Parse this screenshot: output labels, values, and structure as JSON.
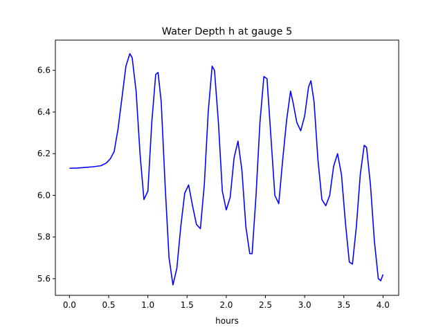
{
  "chart_data": {
    "type": "line",
    "title": "Water Depth h at gauge 5",
    "xlabel": "hours",
    "ylabel": "",
    "xlim": [
      -0.18,
      4.2
    ],
    "ylim": [
      5.52,
      6.745
    ],
    "xticks": [
      0.0,
      0.5,
      1.0,
      1.5,
      2.0,
      2.5,
      3.0,
      3.5,
      4.0
    ],
    "xtick_labels": [
      "0.0",
      "0.5",
      "1.0",
      "1.5",
      "2.0",
      "2.5",
      "3.0",
      "3.5",
      "4.0"
    ],
    "yticks": [
      5.6,
      5.8,
      6.0,
      6.2,
      6.4,
      6.6
    ],
    "ytick_labels": [
      "5.6",
      "5.8",
      "6.0",
      "6.2",
      "6.4",
      "6.6"
    ],
    "grid": false,
    "series": [
      {
        "name": "",
        "color": "#0000ff",
        "points": [
          [
            0.0,
            6.13
          ],
          [
            0.1,
            6.131
          ],
          [
            0.2,
            6.134
          ],
          [
            0.3,
            6.137
          ],
          [
            0.4,
            6.142
          ],
          [
            0.47,
            6.155
          ],
          [
            0.52,
            6.175
          ],
          [
            0.57,
            6.21
          ],
          [
            0.62,
            6.32
          ],
          [
            0.67,
            6.47
          ],
          [
            0.72,
            6.62
          ],
          [
            0.77,
            6.68
          ],
          [
            0.8,
            6.66
          ],
          [
            0.85,
            6.5
          ],
          [
            0.9,
            6.2
          ],
          [
            0.95,
            5.98
          ],
          [
            1.0,
            6.02
          ],
          [
            1.05,
            6.35
          ],
          [
            1.1,
            6.58
          ],
          [
            1.13,
            6.59
          ],
          [
            1.17,
            6.45
          ],
          [
            1.22,
            6.05
          ],
          [
            1.27,
            5.7
          ],
          [
            1.32,
            5.57
          ],
          [
            1.37,
            5.65
          ],
          [
            1.42,
            5.85
          ],
          [
            1.47,
            6.01
          ],
          [
            1.52,
            6.05
          ],
          [
            1.57,
            5.95
          ],
          [
            1.62,
            5.86
          ],
          [
            1.67,
            5.84
          ],
          [
            1.72,
            6.05
          ],
          [
            1.77,
            6.4
          ],
          [
            1.82,
            6.62
          ],
          [
            1.85,
            6.6
          ],
          [
            1.9,
            6.35
          ],
          [
            1.95,
            6.02
          ],
          [
            2.0,
            5.93
          ],
          [
            2.05,
            5.99
          ],
          [
            2.1,
            6.18
          ],
          [
            2.15,
            6.26
          ],
          [
            2.2,
            6.12
          ],
          [
            2.25,
            5.85
          ],
          [
            2.3,
            5.72
          ],
          [
            2.33,
            5.72
          ],
          [
            2.38,
            6.0
          ],
          [
            2.43,
            6.35
          ],
          [
            2.48,
            6.57
          ],
          [
            2.52,
            6.56
          ],
          [
            2.57,
            6.28
          ],
          [
            2.62,
            6.0
          ],
          [
            2.67,
            5.96
          ],
          [
            2.72,
            6.17
          ],
          [
            2.77,
            6.36
          ],
          [
            2.82,
            6.5
          ],
          [
            2.85,
            6.45
          ],
          [
            2.9,
            6.35
          ],
          [
            2.95,
            6.31
          ],
          [
            3.0,
            6.38
          ],
          [
            3.05,
            6.52
          ],
          [
            3.08,
            6.55
          ],
          [
            3.12,
            6.45
          ],
          [
            3.17,
            6.17
          ],
          [
            3.22,
            5.98
          ],
          [
            3.27,
            5.95
          ],
          [
            3.32,
            6.0
          ],
          [
            3.37,
            6.14
          ],
          [
            3.42,
            6.2
          ],
          [
            3.47,
            6.1
          ],
          [
            3.52,
            5.87
          ],
          [
            3.57,
            5.68
          ],
          [
            3.61,
            5.67
          ],
          [
            3.66,
            5.85
          ],
          [
            3.71,
            6.1
          ],
          [
            3.76,
            6.24
          ],
          [
            3.79,
            6.23
          ],
          [
            3.84,
            6.05
          ],
          [
            3.89,
            5.78
          ],
          [
            3.94,
            5.6
          ],
          [
            3.97,
            5.59
          ],
          [
            4.0,
            5.62
          ]
        ]
      }
    ]
  }
}
